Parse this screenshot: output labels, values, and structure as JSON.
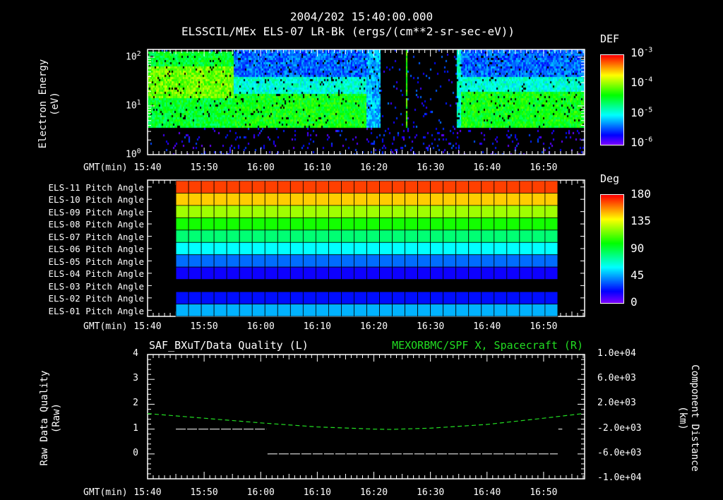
{
  "title": {
    "line1": "2004/202 15:40:00.000",
    "line2": "ELSSCIL/MEx ELS-07 LR-Bk  (ergs/(cm**2-sr-sec-eV))"
  },
  "time_axis": {
    "label": "GMT(min)",
    "ticks": [
      "15:40",
      "15:50",
      "16:00",
      "16:10",
      "16:20",
      "16:30",
      "16:40",
      "16:50"
    ]
  },
  "chart_data": [
    {
      "type": "heatmap",
      "name": "spectrogram",
      "ylabel": "Electron Energy (eV)",
      "ylabel_lines": [
        "Electron Energy",
        "(eV)"
      ],
      "yscale": "log",
      "ylim": [
        1,
        145
      ],
      "yticks": [
        {
          "base": "10",
          "exp": "0",
          "value": 1
        },
        {
          "base": "10",
          "exp": "1",
          "value": 10
        },
        {
          "base": "10",
          "exp": "2",
          "value": 100
        }
      ],
      "xlim_minutes_after_1540": [
        0,
        77
      ],
      "features": [
        {
          "from": 0,
          "to": 15,
          "description_level_log": -4.1,
          "energy_range": [
            4,
            80
          ]
        },
        {
          "from": 15,
          "to": 38.5,
          "description_level_log": -4.4,
          "energy_range": [
            3.7,
            20
          ]
        },
        {
          "from": 45.6,
          "to": 45.9,
          "description_level_log": -4.2,
          "energy_range": [
            3.7,
            145
          ]
        },
        {
          "from": 56,
          "to": 77,
          "description_level_log": -4.4,
          "energy_range": [
            3.7,
            20
          ]
        }
      ],
      "colorbar": {
        "title": "DEF",
        "scale": "log",
        "range": [
          -6,
          -3
        ],
        "ticks": [
          {
            "base": "10",
            "exp": "-3"
          },
          {
            "base": "10",
            "exp": "-4"
          },
          {
            "base": "10",
            "exp": "-5"
          },
          {
            "base": "10",
            "exp": "-6"
          }
        ]
      }
    },
    {
      "type": "heatmap",
      "name": "pitch-angle",
      "rows": [
        {
          "label": "ELS-11 Pitch Angle",
          "deg": 170
        },
        {
          "label": "ELS-10 Pitch Angle",
          "deg": 148
        },
        {
          "label": "ELS-09 Pitch Angle",
          "deg": 125
        },
        {
          "label": "ELS-08 Pitch Angle",
          "deg": 103
        },
        {
          "label": "ELS-07 Pitch Angle",
          "deg": 82
        },
        {
          "label": "ELS-06 Pitch Angle",
          "deg": 60
        },
        {
          "label": "ELS-05 Pitch Angle",
          "deg": 37
        },
        {
          "label": "ELS-04 Pitch Angle",
          "deg": 18
        },
        {
          "label": "ELS-03 Pitch Angle",
          "deg": null
        },
        {
          "label": "ELS-02 Pitch Angle",
          "deg": 22
        },
        {
          "label": "ELS-01 Pitch Angle",
          "deg": 48
        }
      ],
      "time_range_minutes": [
        5,
        72.5
      ],
      "blocks": 30,
      "colorbar": {
        "title": "Deg",
        "range": [
          0,
          180
        ],
        "ticks": [
          "180",
          "135",
          "90",
          "45",
          "0"
        ]
      }
    },
    {
      "type": "line",
      "name": "quality-distance",
      "left_title": "SAF_BXuT/Data Quality (L)",
      "right_title": "MEXORBMC/SPF X, Spacecraft (R)",
      "left_ylabel_lines": [
        "Raw Data Quality",
        "(Raw)"
      ],
      "right_ylabel_lines": [
        "Component Distance",
        "(km)"
      ],
      "left_ylim": [
        -1,
        4
      ],
      "left_ticks": [
        "4",
        "3",
        "2",
        "1",
        "0"
      ],
      "right_ylim": [
        -10000,
        10000
      ],
      "right_ticks": [
        "1.0e+04",
        "6.0e+03",
        "2.0e+03",
        "-2.0e+03",
        "-6.0e+03",
        "-1.0e+04"
      ],
      "series": [
        {
          "name": "Data Quality",
          "color": "#ffffff",
          "segments": [
            {
              "x": [
                5,
                21
              ],
              "y": [
                1,
                1
              ]
            },
            {
              "x": [
                21.2,
                72.5
              ],
              "y": [
                0,
                0
              ]
            },
            {
              "x": [
                72.6,
                73.3
              ],
              "y": [
                1,
                1
              ]
            }
          ]
        },
        {
          "name": "SPF X",
          "color": "#22dd22",
          "style": "dashed",
          "x": [
            0,
            10,
            20,
            30,
            40,
            43,
            50,
            60,
            70,
            77
          ],
          "y": [
            500,
            -250,
            -1000,
            -1650,
            -2000,
            -2050,
            -1850,
            -1250,
            -250,
            500
          ]
        }
      ]
    }
  ]
}
